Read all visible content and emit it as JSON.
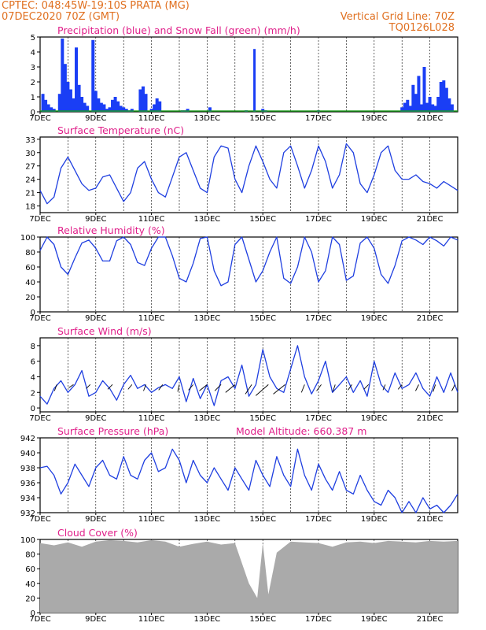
{
  "header": {
    "line1_left": "CPTEC:   048:45W-19:10S   PRATA (MG)",
    "line2_left": "07DEC2020 70Z (GMT)",
    "line2_right": "Vertical Grid Line: 70Z",
    "line3_right": "TQ0126L028"
  },
  "colors": {
    "series": "#1f3fe0",
    "bars": "#1a3ef5",
    "snow": "#1a9a1a",
    "cloud": "#aaaaaa",
    "title": "#e0208a",
    "header": "#e07020"
  },
  "x_ticks": [
    "7DEC",
    "9DEC",
    "11DEC",
    "13DEC",
    "15DEC",
    "17DEC",
    "19DEC",
    "21DEC"
  ],
  "chart_data": [
    {
      "type": "bar",
      "title": "Precipitation (blue) and Snow Fall (green) (mm/h)",
      "ylim": [
        0,
        5
      ],
      "yticks": [
        "0",
        "1",
        "2",
        "3",
        "4",
        "5"
      ],
      "x_range_days": [
        0,
        15
      ],
      "series": [
        {
          "values_x_days": [
            0.1,
            0.2,
            0.3,
            0.4,
            0.5,
            0.7,
            0.8,
            0.9,
            1.0,
            1.1,
            1.2,
            1.3,
            1.4,
            1.5,
            1.6,
            1.7,
            1.9,
            2.0,
            2.1,
            2.2,
            2.3,
            2.4,
            2.5,
            2.6,
            2.7,
            2.8,
            2.9,
            3.0,
            3.1,
            3.2,
            3.3,
            3.6,
            3.7,
            3.8,
            4.0,
            4.1,
            4.2,
            4.3,
            5.1,
            5.2,
            5.3,
            6.1,
            7.4,
            8.0,
            8.1,
            10.0,
            13.0,
            13.1,
            13.2,
            13.3,
            13.4,
            13.5,
            13.6,
            13.7,
            13.8,
            13.9,
            14.0,
            14.1,
            14.2,
            14.3,
            14.4,
            14.5,
            14.6,
            14.7,
            14.8
          ],
          "values": [
            1.2,
            0.8,
            0.5,
            0.3,
            0.2,
            1.2,
            4.9,
            3.2,
            2.0,
            1.5,
            0.9,
            4.3,
            1.8,
            1.0,
            0.6,
            0.4,
            4.8,
            1.4,
            0.9,
            0.6,
            0.5,
            0.2,
            0.3,
            0.8,
            1.0,
            0.7,
            0.4,
            0.3,
            0.2,
            0.1,
            0.2,
            1.5,
            1.7,
            1.2,
            0.2,
            0.5,
            0.9,
            0.7,
            0.1,
            0.1,
            0.2,
            0.3,
            0.1,
            0.2,
            0.1,
            0.1,
            0.3,
            0.6,
            0.8,
            0.4,
            1.8,
            1.2,
            2.4,
            0.5,
            3.0,
            0.6,
            1.0,
            0.5,
            0.4,
            1.0,
            2.0,
            2.1,
            1.6,
            0.9,
            0.5
          ]
        }
      ],
      "spike": {
        "x_day": 7.7,
        "value": 4.2
      }
    },
    {
      "type": "line",
      "title": "Surface Temperature (nC)",
      "ylim": [
        16.5,
        33.5
      ],
      "yticks": [
        "18",
        "21",
        "24",
        "27",
        "30",
        "33"
      ],
      "ytick_values": [
        18,
        21,
        24,
        27,
        30,
        33
      ],
      "x_days": [
        0,
        0.25,
        0.5,
        0.75,
        1.0,
        1.25,
        1.5,
        1.75,
        2.0,
        2.25,
        2.5,
        2.75,
        3.0,
        3.25,
        3.5,
        3.75,
        4.0,
        4.25,
        4.5,
        4.75,
        5.0,
        5.25,
        5.5,
        5.75,
        6.0,
        6.25,
        6.5,
        6.75,
        7.0,
        7.25,
        7.5,
        7.75,
        8.0,
        8.25,
        8.5,
        8.75,
        9.0,
        9.25,
        9.5,
        9.75,
        10.0,
        10.25,
        10.5,
        10.75,
        11.0,
        11.25,
        11.5,
        11.75,
        12.0,
        12.25,
        12.5,
        12.75,
        13.0,
        13.25,
        13.5,
        13.75,
        14.0,
        14.25,
        14.5,
        14.75,
        15.0
      ],
      "values": [
        21.5,
        18.5,
        20.0,
        26.5,
        29.0,
        26.0,
        23.0,
        21.5,
        22.0,
        24.5,
        25.0,
        22.0,
        19.0,
        21.0,
        26.5,
        28.0,
        24.0,
        21.0,
        20.0,
        24.5,
        29.0,
        30.0,
        26.0,
        22.0,
        21.0,
        29.0,
        31.5,
        31.0,
        24.0,
        21.0,
        27.0,
        31.5,
        28.0,
        24.0,
        22.0,
        30.0,
        31.5,
        27.0,
        22.0,
        26.0,
        31.5,
        28.0,
        22.0,
        25.0,
        32.0,
        30.0,
        23.0,
        21.0,
        25.0,
        30.0,
        31.5,
        26.0,
        24.0,
        24.0,
        25.0,
        23.5,
        23.0,
        22.0,
        23.5,
        22.5,
        21.5
      ]
    },
    {
      "type": "line",
      "title": "Relative Humidity (%)",
      "ylim": [
        0,
        100
      ],
      "yticks": [
        "0",
        "20",
        "40",
        "60",
        "80",
        "100"
      ],
      "ytick_values": [
        0,
        20,
        40,
        60,
        80,
        100
      ],
      "x_days": [
        0,
        0.25,
        0.5,
        0.75,
        1.0,
        1.25,
        1.5,
        1.75,
        2.0,
        2.25,
        2.5,
        2.75,
        3.0,
        3.25,
        3.5,
        3.75,
        4.0,
        4.25,
        4.5,
        4.75,
        5.0,
        5.25,
        5.5,
        5.75,
        6.0,
        6.25,
        6.5,
        6.75,
        7.0,
        7.25,
        7.5,
        7.75,
        8.0,
        8.25,
        8.5,
        8.75,
        9.0,
        9.25,
        9.5,
        9.75,
        10.0,
        10.25,
        10.5,
        10.75,
        11.0,
        11.25,
        11.5,
        11.75,
        12.0,
        12.25,
        12.5,
        12.75,
        13.0,
        13.25,
        13.5,
        13.75,
        14.0,
        14.25,
        14.5,
        14.75,
        15.0
      ],
      "values": [
        82,
        100,
        90,
        60,
        50,
        72,
        92,
        96,
        85,
        68,
        68,
        95,
        100,
        90,
        66,
        62,
        85,
        100,
        100,
        75,
        45,
        40,
        65,
        98,
        100,
        55,
        35,
        40,
        90,
        100,
        70,
        40,
        55,
        80,
        100,
        45,
        38,
        60,
        100,
        80,
        40,
        55,
        100,
        90,
        42,
        48,
        92,
        100,
        85,
        50,
        38,
        62,
        95,
        100,
        96,
        90,
        100,
        95,
        88,
        100,
        96
      ]
    },
    {
      "type": "line",
      "title": "Surface Wind (m/s)",
      "ylim": [
        -0.5,
        9
      ],
      "yticks": [
        "0",
        "2",
        "4",
        "6",
        "8"
      ],
      "ytick_values": [
        0,
        2,
        4,
        6,
        8
      ],
      "x_days": [
        0,
        0.25,
        0.5,
        0.75,
        1.0,
        1.25,
        1.5,
        1.75,
        2.0,
        2.25,
        2.5,
        2.75,
        3.0,
        3.25,
        3.5,
        3.75,
        4.0,
        4.25,
        4.5,
        4.75,
        5.0,
        5.25,
        5.5,
        5.75,
        6.0,
        6.25,
        6.5,
        6.75,
        7.0,
        7.25,
        7.5,
        7.75,
        8.0,
        8.25,
        8.5,
        8.75,
        9.0,
        9.25,
        9.5,
        9.75,
        10.0,
        10.25,
        10.5,
        10.75,
        11.0,
        11.25,
        11.5,
        11.75,
        12.0,
        12.25,
        12.5,
        12.75,
        13.0,
        13.25,
        13.5,
        13.75,
        14.0,
        14.25,
        14.5,
        14.75,
        15.0
      ],
      "values": [
        1.5,
        0.5,
        2.5,
        3.5,
        2.0,
        3.0,
        4.8,
        1.5,
        2.0,
        3.5,
        2.5,
        1.0,
        3.0,
        4.2,
        2.5,
        3.0,
        2.0,
        2.6,
        3.0,
        2.5,
        4.0,
        0.8,
        3.8,
        1.2,
        3.0,
        0.3,
        3.5,
        4.0,
        2.5,
        5.5,
        1.5,
        3.0,
        7.5,
        4.0,
        2.5,
        2.0,
        5.0,
        8.0,
        4.0,
        1.8,
        3.5,
        6.0,
        2.0,
        3.0,
        4.0,
        2.0,
        3.5,
        1.5,
        6.0,
        3.0,
        2.0,
        4.5,
        2.5,
        3.0,
        4.5,
        2.5,
        1.5,
        4.0,
        2.0,
        4.5,
        2.0
      ],
      "arrows": [
        {
          "x_day": 0.6,
          "dx": -3,
          "dy": -8
        },
        {
          "x_day": 1.2,
          "dx": -6,
          "dy": -4
        },
        {
          "x_day": 1.8,
          "dx": -5,
          "dy": -5
        },
        {
          "x_day": 2.6,
          "dx": -6,
          "dy": -6
        },
        {
          "x_day": 3.3,
          "dx": -5,
          "dy": -6
        },
        {
          "x_day": 3.8,
          "dx": -3,
          "dy": -8
        },
        {
          "x_day": 4.4,
          "dx": -5,
          "dy": -7
        },
        {
          "x_day": 5.0,
          "dx": -2,
          "dy": -9
        },
        {
          "x_day": 5.5,
          "dx": -6,
          "dy": -7
        },
        {
          "x_day": 6.0,
          "dx": -10,
          "dy": -8
        },
        {
          "x_day": 6.5,
          "dx": -8,
          "dy": -8
        },
        {
          "x_day": 7.0,
          "dx": -12,
          "dy": -10
        },
        {
          "x_day": 7.6,
          "dx": -8,
          "dy": -12
        },
        {
          "x_day": 8.2,
          "dx": -16,
          "dy": -14
        },
        {
          "x_day": 8.8,
          "dx": -15,
          "dy": -12
        },
        {
          "x_day": 9.5,
          "dx": -4,
          "dy": -10
        },
        {
          "x_day": 10.1,
          "dx": -6,
          "dy": -8
        },
        {
          "x_day": 10.6,
          "dx": -3,
          "dy": -9
        },
        {
          "x_day": 11.2,
          "dx": -5,
          "dy": -7
        },
        {
          "x_day": 11.8,
          "dx": -6,
          "dy": -6
        },
        {
          "x_day": 12.4,
          "dx": -3,
          "dy": -7
        },
        {
          "x_day": 13.0,
          "dx": -5,
          "dy": -6
        },
        {
          "x_day": 13.6,
          "dx": -4,
          "dy": -8
        },
        {
          "x_day": 14.2,
          "dx": -3,
          "dy": -9
        },
        {
          "x_day": 14.9,
          "dx": -4,
          "dy": -8
        }
      ]
    },
    {
      "type": "line",
      "title": "Surface Pressure (hPa)",
      "subtitle": "Model Altitude:  660.387  m",
      "ylim": [
        932,
        942
      ],
      "yticks": [
        "932",
        "934",
        "936",
        "938",
        "940",
        "942"
      ],
      "ytick_values": [
        932,
        934,
        936,
        938,
        940,
        942
      ],
      "x_days": [
        0,
        0.25,
        0.5,
        0.75,
        1.0,
        1.25,
        1.5,
        1.75,
        2.0,
        2.25,
        2.5,
        2.75,
        3.0,
        3.25,
        3.5,
        3.75,
        4.0,
        4.25,
        4.5,
        4.75,
        5.0,
        5.25,
        5.5,
        5.75,
        6.0,
        6.25,
        6.5,
        6.75,
        7.0,
        7.25,
        7.5,
        7.75,
        8.0,
        8.25,
        8.5,
        8.75,
        9.0,
        9.25,
        9.5,
        9.75,
        10.0,
        10.25,
        10.5,
        10.75,
        11.0,
        11.25,
        11.5,
        11.75,
        12.0,
        12.25,
        12.5,
        12.75,
        13.0,
        13.25,
        13.5,
        13.75,
        14.0,
        14.25,
        14.5,
        14.75,
        15.0
      ],
      "values": [
        938,
        938.2,
        937,
        934.5,
        936,
        938.5,
        937,
        935.5,
        938,
        939,
        937,
        936.5,
        939.5,
        937,
        936.5,
        939,
        940,
        937.5,
        938,
        940.5,
        939,
        936,
        939,
        937,
        936,
        938,
        936.5,
        935,
        938,
        936.5,
        935,
        939,
        937,
        935.5,
        939.5,
        937,
        935.5,
        940.5,
        937,
        935,
        938.5,
        936.5,
        935,
        937.5,
        935,
        934.5,
        937,
        935,
        933.5,
        933,
        935,
        934,
        932,
        933.5,
        932,
        934,
        932.5,
        933,
        932,
        933,
        934.5
      ]
    },
    {
      "type": "bar",
      "title": "Cloud Cover (%)",
      "ylim": [
        0,
        100
      ],
      "yticks": [
        "0",
        "20",
        "40",
        "60",
        "80",
        "100"
      ],
      "x_days": [
        0,
        0.5,
        1.0,
        1.5,
        2.0,
        2.5,
        3.0,
        3.5,
        4.0,
        4.5,
        5.0,
        5.5,
        6.0,
        6.5,
        7.0,
        7.5,
        7.8,
        8.0,
        8.2,
        8.5,
        9.0,
        9.5,
        10.0,
        10.5,
        11.0,
        11.5,
        12.0,
        12.5,
        13.0,
        13.5,
        14.0,
        14.5,
        15.0
      ],
      "values": [
        95,
        92,
        96,
        90,
        97,
        99,
        98,
        96,
        99,
        97,
        90,
        94,
        97,
        93,
        95,
        40,
        20,
        95,
        25,
        82,
        97,
        96,
        95,
        90,
        96,
        97,
        95,
        98,
        97,
        96,
        98,
        97,
        98
      ]
    }
  ]
}
